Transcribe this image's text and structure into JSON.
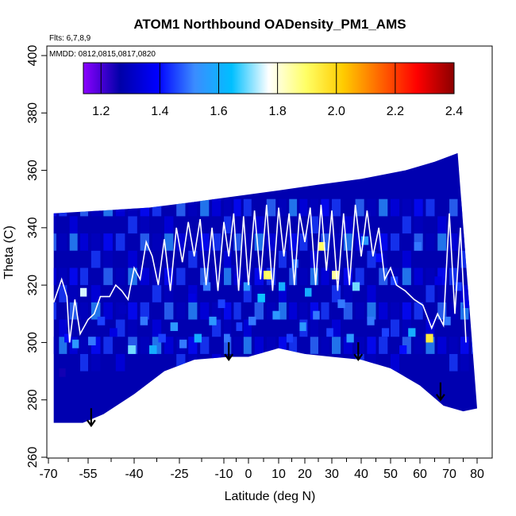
{
  "chart_data": {
    "type": "heatmap",
    "title": "ATOM1 Northbound OADensity_PM1_AMS",
    "flights_note": "Flts: 6,7,8,9",
    "dates_note": "MMDD: 0812,0815,0817,0820",
    "xlabel": "Latitude (deg N)",
    "ylabel": "Theta (C)",
    "xlim": [
      -70,
      80
    ],
    "ylim": [
      260,
      400
    ],
    "x_tick_labels": [
      "-70",
      "-55",
      "-40",
      "-25",
      "-10",
      "0",
      "10",
      "20",
      "30",
      "40",
      "50",
      "60",
      "70",
      "80"
    ],
    "x_tick_values": [
      -70,
      -55,
      -40,
      -25,
      -10,
      0,
      10,
      20,
      30,
      40,
      50,
      60,
      70,
      80
    ],
    "y_tick_values": [
      260,
      280,
      300,
      320,
      340,
      360,
      380,
      400
    ],
    "colorbar": {
      "min": 1.14,
      "max": 2.4,
      "tick_values": [
        1.2,
        1.4,
        1.6,
        1.8,
        2.0,
        2.2,
        2.4
      ],
      "tick_labels": [
        "1.2",
        "1.4",
        "1.6",
        "1.8",
        "2.0",
        "2.2",
        "2.4"
      ],
      "colors": [
        "#8b00ff",
        "#0000a8",
        "#0000ff",
        "#3b8cff",
        "#00bfff",
        "#ffffff",
        "#ffff66",
        "#ffcc00",
        "#ff6600",
        "#ff0000",
        "#8b0000"
      ]
    },
    "upper_boundary": [
      [
        -68,
        345
      ],
      [
        -50,
        346
      ],
      [
        -35,
        347
      ],
      [
        -20,
        349
      ],
      [
        -5,
        351
      ],
      [
        10,
        353
      ],
      [
        25,
        355
      ],
      [
        40,
        357
      ],
      [
        55,
        360
      ],
      [
        65,
        363
      ],
      [
        73,
        366
      ]
    ],
    "lower_boundary": [
      [
        -68,
        272
      ],
      [
        -57,
        272
      ],
      [
        -50,
        275
      ],
      [
        -40,
        282
      ],
      [
        -30,
        290
      ],
      [
        -20,
        294
      ],
      [
        -8,
        295
      ],
      [
        0,
        295
      ],
      [
        10,
        298
      ],
      [
        20,
        296
      ],
      [
        30,
        295
      ],
      [
        40,
        294
      ],
      [
        50,
        291
      ],
      [
        60,
        285
      ],
      [
        68,
        278
      ],
      [
        75,
        276
      ],
      [
        80,
        277
      ]
    ],
    "arrows_lat": [
      -54,
      -8,
      39,
      67
    ],
    "arrows_theta": [
      271,
      294,
      294,
      280
    ],
    "flight_track": [
      [
        -68,
        314
      ],
      [
        -65,
        322
      ],
      [
        -63,
        316
      ],
      [
        -62,
        300
      ],
      [
        -60,
        315
      ],
      [
        -58,
        303
      ],
      [
        -55,
        308
      ],
      [
        -53,
        310
      ],
      [
        -51,
        316
      ],
      [
        -48,
        316
      ],
      [
        -46,
        320
      ],
      [
        -44,
        318
      ],
      [
        -42,
        315
      ],
      [
        -40,
        326
      ],
      [
        -38,
        322
      ],
      [
        -36,
        335
      ],
      [
        -34,
        330
      ],
      [
        -32,
        320
      ],
      [
        -30,
        336
      ],
      [
        -28,
        318
      ],
      [
        -26,
        340
      ],
      [
        -24,
        328
      ],
      [
        -22,
        342
      ],
      [
        -20,
        330
      ],
      [
        -18,
        343
      ],
      [
        -16,
        320
      ],
      [
        -14,
        340
      ],
      [
        -12,
        318
      ],
      [
        -10,
        342
      ],
      [
        -8,
        330
      ],
      [
        -6,
        345
      ],
      [
        -4,
        318
      ],
      [
        -2,
        344
      ],
      [
        0,
        320
      ],
      [
        2,
        346
      ],
      [
        4,
        322
      ],
      [
        6,
        348
      ],
      [
        8,
        318
      ],
      [
        10,
        347
      ],
      [
        12,
        330
      ],
      [
        14,
        345
      ],
      [
        16,
        320
      ],
      [
        18,
        345
      ],
      [
        20,
        335
      ],
      [
        22,
        347
      ],
      [
        24,
        320
      ],
      [
        26,
        348
      ],
      [
        28,
        325
      ],
      [
        30,
        346
      ],
      [
        32,
        318
      ],
      [
        34,
        345
      ],
      [
        36,
        320
      ],
      [
        38,
        348
      ],
      [
        40,
        330
      ],
      [
        42,
        346
      ],
      [
        44,
        330
      ],
      [
        46,
        340
      ],
      [
        48,
        322
      ],
      [
        50,
        326
      ],
      [
        52,
        320
      ],
      [
        55,
        318
      ],
      [
        58,
        315
      ],
      [
        61,
        313
      ],
      [
        64,
        305
      ],
      [
        66,
        310
      ],
      [
        68,
        306
      ],
      [
        70,
        345
      ],
      [
        72,
        310
      ],
      [
        74,
        340
      ],
      [
        76,
        300
      ]
    ],
    "cells": [
      [
        -66,
        288,
        1.25
      ],
      [
        -64,
        300,
        1.4
      ],
      [
        -61,
        298,
        1.55
      ],
      [
        -58,
        316,
        1.75
      ],
      [
        -55,
        299,
        1.5
      ],
      [
        -52,
        306,
        1.45
      ],
      [
        -48,
        302,
        1.35
      ],
      [
        -45,
        310,
        1.3
      ],
      [
        -42,
        296,
        1.7
      ],
      [
        -38,
        306,
        1.5
      ],
      [
        -35,
        296,
        1.6
      ],
      [
        -32,
        300,
        1.45
      ],
      [
        -28,
        304,
        1.55
      ],
      [
        -25,
        298,
        1.5
      ],
      [
        -22,
        314,
        1.35
      ],
      [
        -20,
        300,
        1.6
      ],
      [
        -17,
        318,
        1.5
      ],
      [
        -15,
        306,
        1.55
      ],
      [
        -12,
        312,
        1.45
      ],
      [
        -10,
        300,
        1.5
      ],
      [
        -7,
        324,
        1.3
      ],
      [
        -5,
        304,
        1.45
      ],
      [
        -2,
        318,
        1.55
      ],
      [
        0,
        306,
        1.5
      ],
      [
        3,
        314,
        1.65
      ],
      [
        5,
        322,
        1.9
      ],
      [
        8,
        308,
        1.55
      ],
      [
        10,
        318,
        1.6
      ],
      [
        13,
        300,
        1.45
      ],
      [
        15,
        326,
        1.5
      ],
      [
        18,
        304,
        1.55
      ],
      [
        20,
        316,
        1.6
      ],
      [
        23,
        308,
        1.5
      ],
      [
        25,
        332,
        1.9
      ],
      [
        28,
        302,
        1.45
      ],
      [
        30,
        322,
        1.85
      ],
      [
        32,
        312,
        1.5
      ],
      [
        35,
        300,
        1.55
      ],
      [
        37,
        318,
        1.7
      ],
      [
        40,
        334,
        1.55
      ],
      [
        42,
        306,
        1.5
      ],
      [
        45,
        328,
        1.4
      ],
      [
        47,
        302,
        1.45
      ],
      [
        50,
        320,
        1.45
      ],
      [
        53,
        296,
        1.4
      ],
      [
        56,
        302,
        1.6
      ],
      [
        58,
        332,
        1.5
      ],
      [
        62,
        300,
        1.95
      ],
      [
        65,
        320,
        1.35
      ],
      [
        68,
        306,
        1.5
      ],
      [
        72,
        318,
        1.45
      ],
      [
        75,
        312,
        1.35
      ]
    ]
  }
}
